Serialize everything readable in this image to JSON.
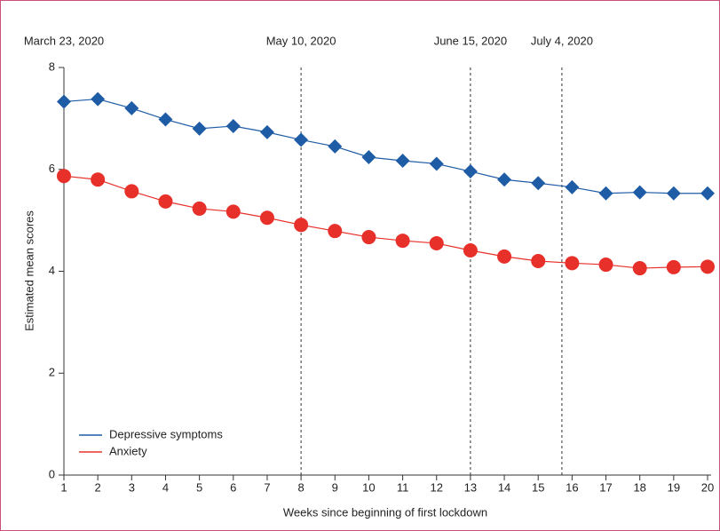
{
  "chart_data": {
    "type": "line",
    "x_label": "Weeks since beginning of first lockdown",
    "y_label": "Estimated mean scores",
    "x": [
      1,
      2,
      3,
      4,
      5,
      6,
      7,
      8,
      9,
      10,
      11,
      12,
      13,
      14,
      15,
      16,
      17,
      18,
      19,
      20
    ],
    "xlim": [
      1,
      20
    ],
    "xticks": [
      1,
      2,
      3,
      4,
      5,
      6,
      7,
      8,
      9,
      10,
      11,
      12,
      13,
      14,
      15,
      16,
      17,
      18,
      19,
      20
    ],
    "ylim": [
      0,
      8
    ],
    "yticks": [
      0,
      2,
      4,
      6,
      8
    ],
    "legend": "lower left",
    "series": [
      {
        "name": "Depressive symptoms",
        "color": "#1f5ca6",
        "marker": "diamond",
        "values": [
          7.33,
          7.38,
          7.2,
          6.98,
          6.8,
          6.85,
          6.73,
          6.58,
          6.45,
          6.24,
          6.17,
          6.11,
          5.96,
          5.8,
          5.73,
          5.65,
          5.53,
          5.55,
          5.53,
          5.53
        ]
      },
      {
        "name": "Anxiety",
        "color": "#e8302a",
        "marker": "circle",
        "values": [
          5.87,
          5.8,
          5.57,
          5.37,
          5.23,
          5.17,
          5.05,
          4.91,
          4.79,
          4.67,
          4.6,
          4.55,
          4.41,
          4.29,
          4.2,
          4.16,
          4.13,
          4.06,
          4.08,
          4.09
        ]
      }
    ],
    "annotations": [
      {
        "text": "March 23, 2020",
        "x": 1
      },
      {
        "text": "May 10, 2020",
        "x": 8
      },
      {
        "text": "June 15, 2020",
        "x": 13
      },
      {
        "text": "July 4, 2020",
        "x": 15.7
      }
    ]
  }
}
